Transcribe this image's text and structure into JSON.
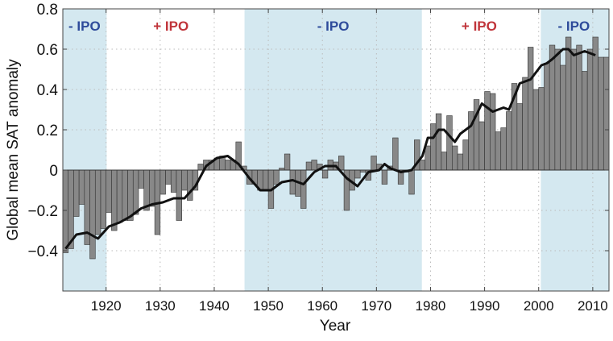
{
  "chart_data": {
    "type": "bar",
    "title": "",
    "xlabel": "Year",
    "ylabel": "Global mean SAT anomaly",
    "xlim": [
      1912,
      2013
    ],
    "ylim": [
      -0.6,
      0.8
    ],
    "grid": true,
    "xticks": [
      1920,
      1930,
      1940,
      1950,
      1960,
      1970,
      1980,
      1990,
      2000,
      2010
    ],
    "yticks": [
      -0.4,
      -0.2,
      0,
      0.2,
      0.4,
      0.6,
      0.8
    ],
    "ytick_labels": [
      "−0.4",
      "−0.2",
      "0",
      "0.2",
      "0.4",
      "0.6",
      "0.8"
    ],
    "bar_color": "#888888",
    "line_color": "#111111",
    "shade_color": "#d4e8f0",
    "years_start": 1912,
    "values": [
      -0.41,
      -0.39,
      -0.23,
      -0.17,
      -0.37,
      -0.44,
      -0.32,
      -0.29,
      -0.21,
      -0.3,
      -0.26,
      -0.25,
      -0.25,
      -0.22,
      -0.09,
      -0.2,
      -0.18,
      -0.32,
      -0.12,
      -0.07,
      -0.11,
      -0.25,
      -0.1,
      -0.15,
      -0.1,
      0.03,
      0.05,
      0.05,
      0.06,
      0.07,
      0.05,
      0.05,
      0.14,
      0.02,
      -0.07,
      -0.07,
      -0.1,
      -0.1,
      -0.19,
      -0.07,
      0.01,
      0.08,
      -0.12,
      -0.13,
      -0.19,
      0.04,
      0.05,
      0.03,
      -0.04,
      0.05,
      0.04,
      0.07,
      -0.2,
      -0.1,
      -0.04,
      -0.01,
      -0.05,
      0.07,
      0.03,
      -0.07,
      0.02,
      0.16,
      -0.07,
      -0.01,
      -0.12,
      0.15,
      0.05,
      0.12,
      0.23,
      0.28,
      0.09,
      0.27,
      0.12,
      0.08,
      0.15,
      0.29,
      0.35,
      0.24,
      0.39,
      0.38,
      0.19,
      0.21,
      0.29,
      0.43,
      0.33,
      0.46,
      0.61,
      0.4,
      0.41,
      0.53,
      0.62,
      0.6,
      0.52,
      0.66,
      0.6,
      0.62,
      0.49,
      0.6,
      0.66,
      0.56,
      0.56
    ],
    "smoothed": {
      "name": "smoothed",
      "x": [
        1912,
        1914,
        1916,
        1918,
        1920,
        1922,
        1924,
        1926,
        1928,
        1930,
        1932,
        1934,
        1936,
        1938,
        1940,
        1942,
        1944,
        1946,
        1948,
        1950,
        1952,
        1954,
        1956,
        1958,
        1960,
        1962,
        1964,
        1966,
        1968,
        1970,
        1971,
        1972,
        1974,
        1976,
        1978,
        1979,
        1980,
        1981,
        1982,
        1984,
        1985,
        1987,
        1989,
        1991,
        1993,
        1994,
        1996,
        1998,
        2000,
        2001,
        2002,
        2004,
        2005,
        2006,
        2008,
        2010
      ],
      "y": [
        -0.39,
        -0.32,
        -0.31,
        -0.34,
        -0.28,
        -0.26,
        -0.23,
        -0.19,
        -0.17,
        -0.16,
        -0.14,
        -0.14,
        -0.08,
        0.02,
        0.06,
        0.07,
        0.03,
        -0.04,
        -0.1,
        -0.1,
        -0.06,
        -0.05,
        -0.07,
        -0.01,
        0.02,
        0.02,
        -0.04,
        -0.08,
        -0.01,
        0.0,
        0.03,
        0.01,
        -0.01,
        0.0,
        0.07,
        0.16,
        0.16,
        0.2,
        0.2,
        0.14,
        0.18,
        0.22,
        0.33,
        0.29,
        0.31,
        0.3,
        0.43,
        0.45,
        0.52,
        0.53,
        0.55,
        0.6,
        0.6,
        0.57,
        0.59,
        0.57
      ]
    },
    "shaded_periods": [
      {
        "start": 1912,
        "end": 1920.1
      },
      {
        "start": 1945.6,
        "end": 1978.4
      },
      {
        "start": 2000.4,
        "end": 2013
      }
    ],
    "annotations": [
      {
        "text": "- IPO",
        "x": 1916,
        "color": "#2e4b9b"
      },
      {
        "text": "+ IPO",
        "x": 1932,
        "color": "#c0343a"
      },
      {
        "text": "- IPO",
        "x": 1962,
        "color": "#2e4b9b"
      },
      {
        "text": "+ IPO",
        "x": 1989,
        "color": "#c0343a"
      },
      {
        "text": "- IPO",
        "x": 2006.5,
        "color": "#2e4b9b"
      }
    ]
  }
}
